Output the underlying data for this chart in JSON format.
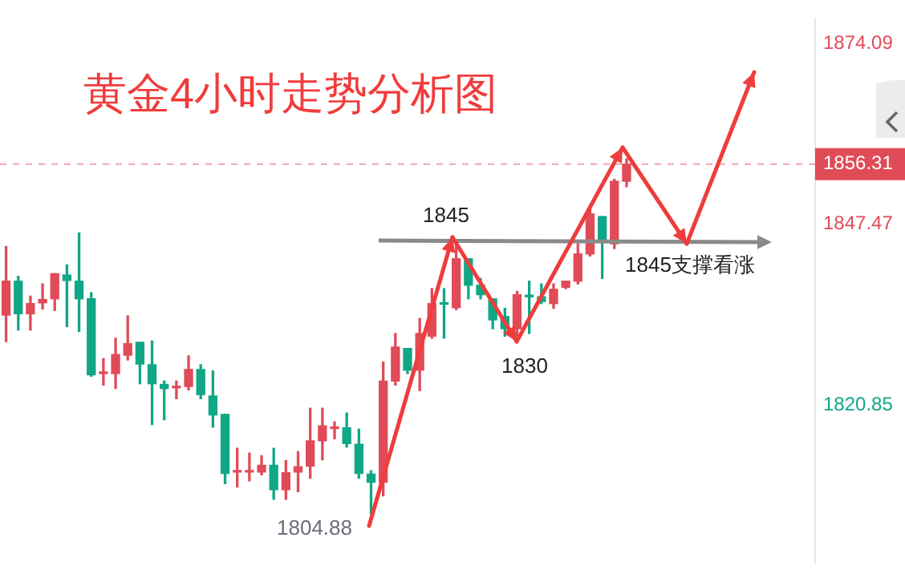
{
  "chart_data": {
    "type": "candlestick",
    "title": "黄金4小时走势分析图",
    "categories": [
      null,
      null,
      null,
      null,
      null,
      null,
      null,
      null,
      null,
      null,
      null,
      null,
      null,
      null,
      null,
      null,
      null,
      null,
      null,
      null,
      null,
      null,
      null,
      null,
      null,
      null,
      null,
      null,
      null,
      null,
      null,
      null,
      null,
      null,
      null,
      null,
      null,
      null,
      null,
      null,
      null,
      null,
      null,
      null,
      null,
      null,
      null,
      null,
      null,
      null,
      null,
      null,
      null,
      null,
      null,
      null,
      null,
      null,
      null,
      null,
      null,
      null,
      null,
      null,
      null,
      null,
      null
    ],
    "ohlc": [
      [
        1834.1,
        1844.2,
        1830.2,
        1839.1
      ],
      [
        1839.1,
        1839.8,
        1831.9,
        1834.3
      ],
      [
        1834.3,
        1836.9,
        1831.9,
        1835.8
      ],
      [
        1835.9,
        1838.7,
        1835.0,
        1836.4
      ],
      [
        1836.5,
        1840.2,
        1834.8,
        1840.2
      ],
      [
        1840.0,
        1841.5,
        1832.4,
        1839.2
      ],
      [
        1839.1,
        1846.2,
        1831.7,
        1836.5
      ],
      [
        1836.5,
        1837.4,
        1825.1,
        1825.3
      ],
      [
        1825.5,
        1827.7,
        1823.8,
        1825.6
      ],
      [
        1825.5,
        1830.7,
        1823.3,
        1828.3
      ],
      [
        1828.2,
        1834.0,
        1827.5,
        1829.9
      ],
      [
        1830.1,
        1830.1,
        1824.0,
        1826.9
      ],
      [
        1826.8,
        1830.3,
        1818.0,
        1824.0
      ],
      [
        1823.9,
        1824.4,
        1818.7,
        1823.3
      ],
      [
        1823.4,
        1824.4,
        1821.8,
        1823.5
      ],
      [
        1823.6,
        1828.1,
        1823.1,
        1826.1
      ],
      [
        1826.1,
        1826.8,
        1821.8,
        1822.4
      ],
      [
        1822.2,
        1825.9,
        1817.6,
        1819.4
      ],
      [
        1819.5,
        1819.5,
        1809.3,
        1810.8
      ],
      [
        1811.0,
        1814.5,
        1808.8,
        1811.1
      ],
      [
        1811.0,
        1813.8,
        1809.7,
        1811.1
      ],
      [
        1811.0,
        1813.4,
        1810.6,
        1812.0
      ],
      [
        1812.0,
        1814.5,
        1807.0,
        1808.4
      ],
      [
        1808.4,
        1812.7,
        1807.0,
        1810.9
      ],
      [
        1811.0,
        1814.0,
        1808.1,
        1811.8
      ],
      [
        1811.9,
        1820.4,
        1810.1,
        1815.6
      ],
      [
        1815.6,
        1820.4,
        1812.8,
        1817.8
      ],
      [
        1817.4,
        1818.4,
        1815.9,
        1817.5
      ],
      [
        1817.5,
        1819.7,
        1814.7,
        1815.2
      ],
      [
        1815.1,
        1817.3,
        1810.1,
        1810.8
      ],
      [
        1810.7,
        1811.2,
        1804.88,
        1809.5
      ],
      [
        1809.5,
        1827.2,
        1807.5,
        1824.4
      ],
      [
        1824.4,
        1831.4,
        1823.8,
        1829.4
      ],
      [
        1829.2,
        1829.2,
        1825.5,
        1826.0
      ],
      [
        1826.0,
        1833.6,
        1823.0,
        1831.4
      ],
      [
        1831.0,
        1838.0,
        1830.7,
        1835.8
      ],
      [
        1835.8,
        1838.0,
        1830.7,
        1835.7
      ],
      [
        1835.2,
        1845.0,
        1834.9,
        1842.4
      ],
      [
        1842.4,
        1842.4,
        1836.5,
        1838.5
      ],
      [
        1838.5,
        1839.5,
        1836.5,
        1837.1
      ],
      [
        1836.5,
        1836.5,
        1832.1,
        1833.4
      ],
      [
        1833.9,
        1835.1,
        1831.0,
        1832.1
      ],
      [
        1832.1,
        1837.6,
        1831.0,
        1837.1
      ],
      [
        1836.9,
        1839.1,
        1831.4,
        1836.8
      ],
      [
        1836.8,
        1838.7,
        1835.8,
        1836.1
      ],
      [
        1835.8,
        1838.7,
        1835.1,
        1837.9
      ],
      [
        1838.2,
        1839.1,
        1838.0,
        1839.1
      ],
      [
        1839.1,
        1844.6,
        1838.7,
        1843.1
      ],
      [
        1843.1,
        1849.7,
        1842.8,
        1849.0
      ],
      [
        1848.6,
        1848.6,
        1839.5,
        1845.0
      ],
      [
        1844.6,
        1854.1,
        1843.9,
        1853.8
      ],
      [
        1853.8,
        1857.1,
        1853.0,
        1856.31
      ],
      null,
      null,
      null,
      null,
      null,
      null,
      null,
      null,
      null,
      null,
      null,
      null,
      null,
      null,
      null
    ],
    "colors": [
      "#e04b58",
      "#11a786",
      "#e04b58",
      "#e04b58",
      "#e04b58",
      "#11a786",
      "#11a786",
      "#11a786",
      "#e04b58",
      "#e04b58",
      "#e04b58",
      "#11a786",
      "#11a786",
      "#11a786",
      "#e04b58",
      "#e04b58",
      "#11a786",
      "#11a786",
      "#11a786",
      "#e04b58",
      "#e04b58",
      "#e04b58",
      "#11a786",
      "#e04b58",
      "#e04b58",
      "#e04b58",
      "#e04b58",
      "#e04b58",
      "#11a786",
      "#11a786",
      "#11a786",
      "#e04b58",
      "#e04b58",
      "#11a786",
      "#e04b58",
      "#e04b58",
      "#11a786",
      "#e04b58",
      "#11a786",
      "#11a786",
      "#11a786",
      "#11a786",
      "#e04b58",
      "#11a786",
      "#11a786",
      "#e04b58",
      "#e04b58",
      "#e04b58",
      "#e04b58",
      "#11a786",
      "#e04b58",
      "#e04b58",
      null,
      null,
      null,
      null,
      null,
      null,
      null,
      null,
      null,
      null,
      null,
      null,
      null,
      null,
      null
    ],
    "ylim": [
      1797.7,
      1877.6
    ],
    "yticks": [
      1874.09,
      1847.47,
      1820.85
    ],
    "ref_lines": [
      {
        "axis": "y",
        "value": 1856.31,
        "label": "1856.31",
        "color": "#e04b58",
        "line_style": "dashed"
      }
    ],
    "annotations": [
      "1845",
      "1830",
      "1804.88",
      "1845支撑看涨"
    ],
    "grid": false,
    "legend": false,
    "tick_labels": "y"
  }
}
